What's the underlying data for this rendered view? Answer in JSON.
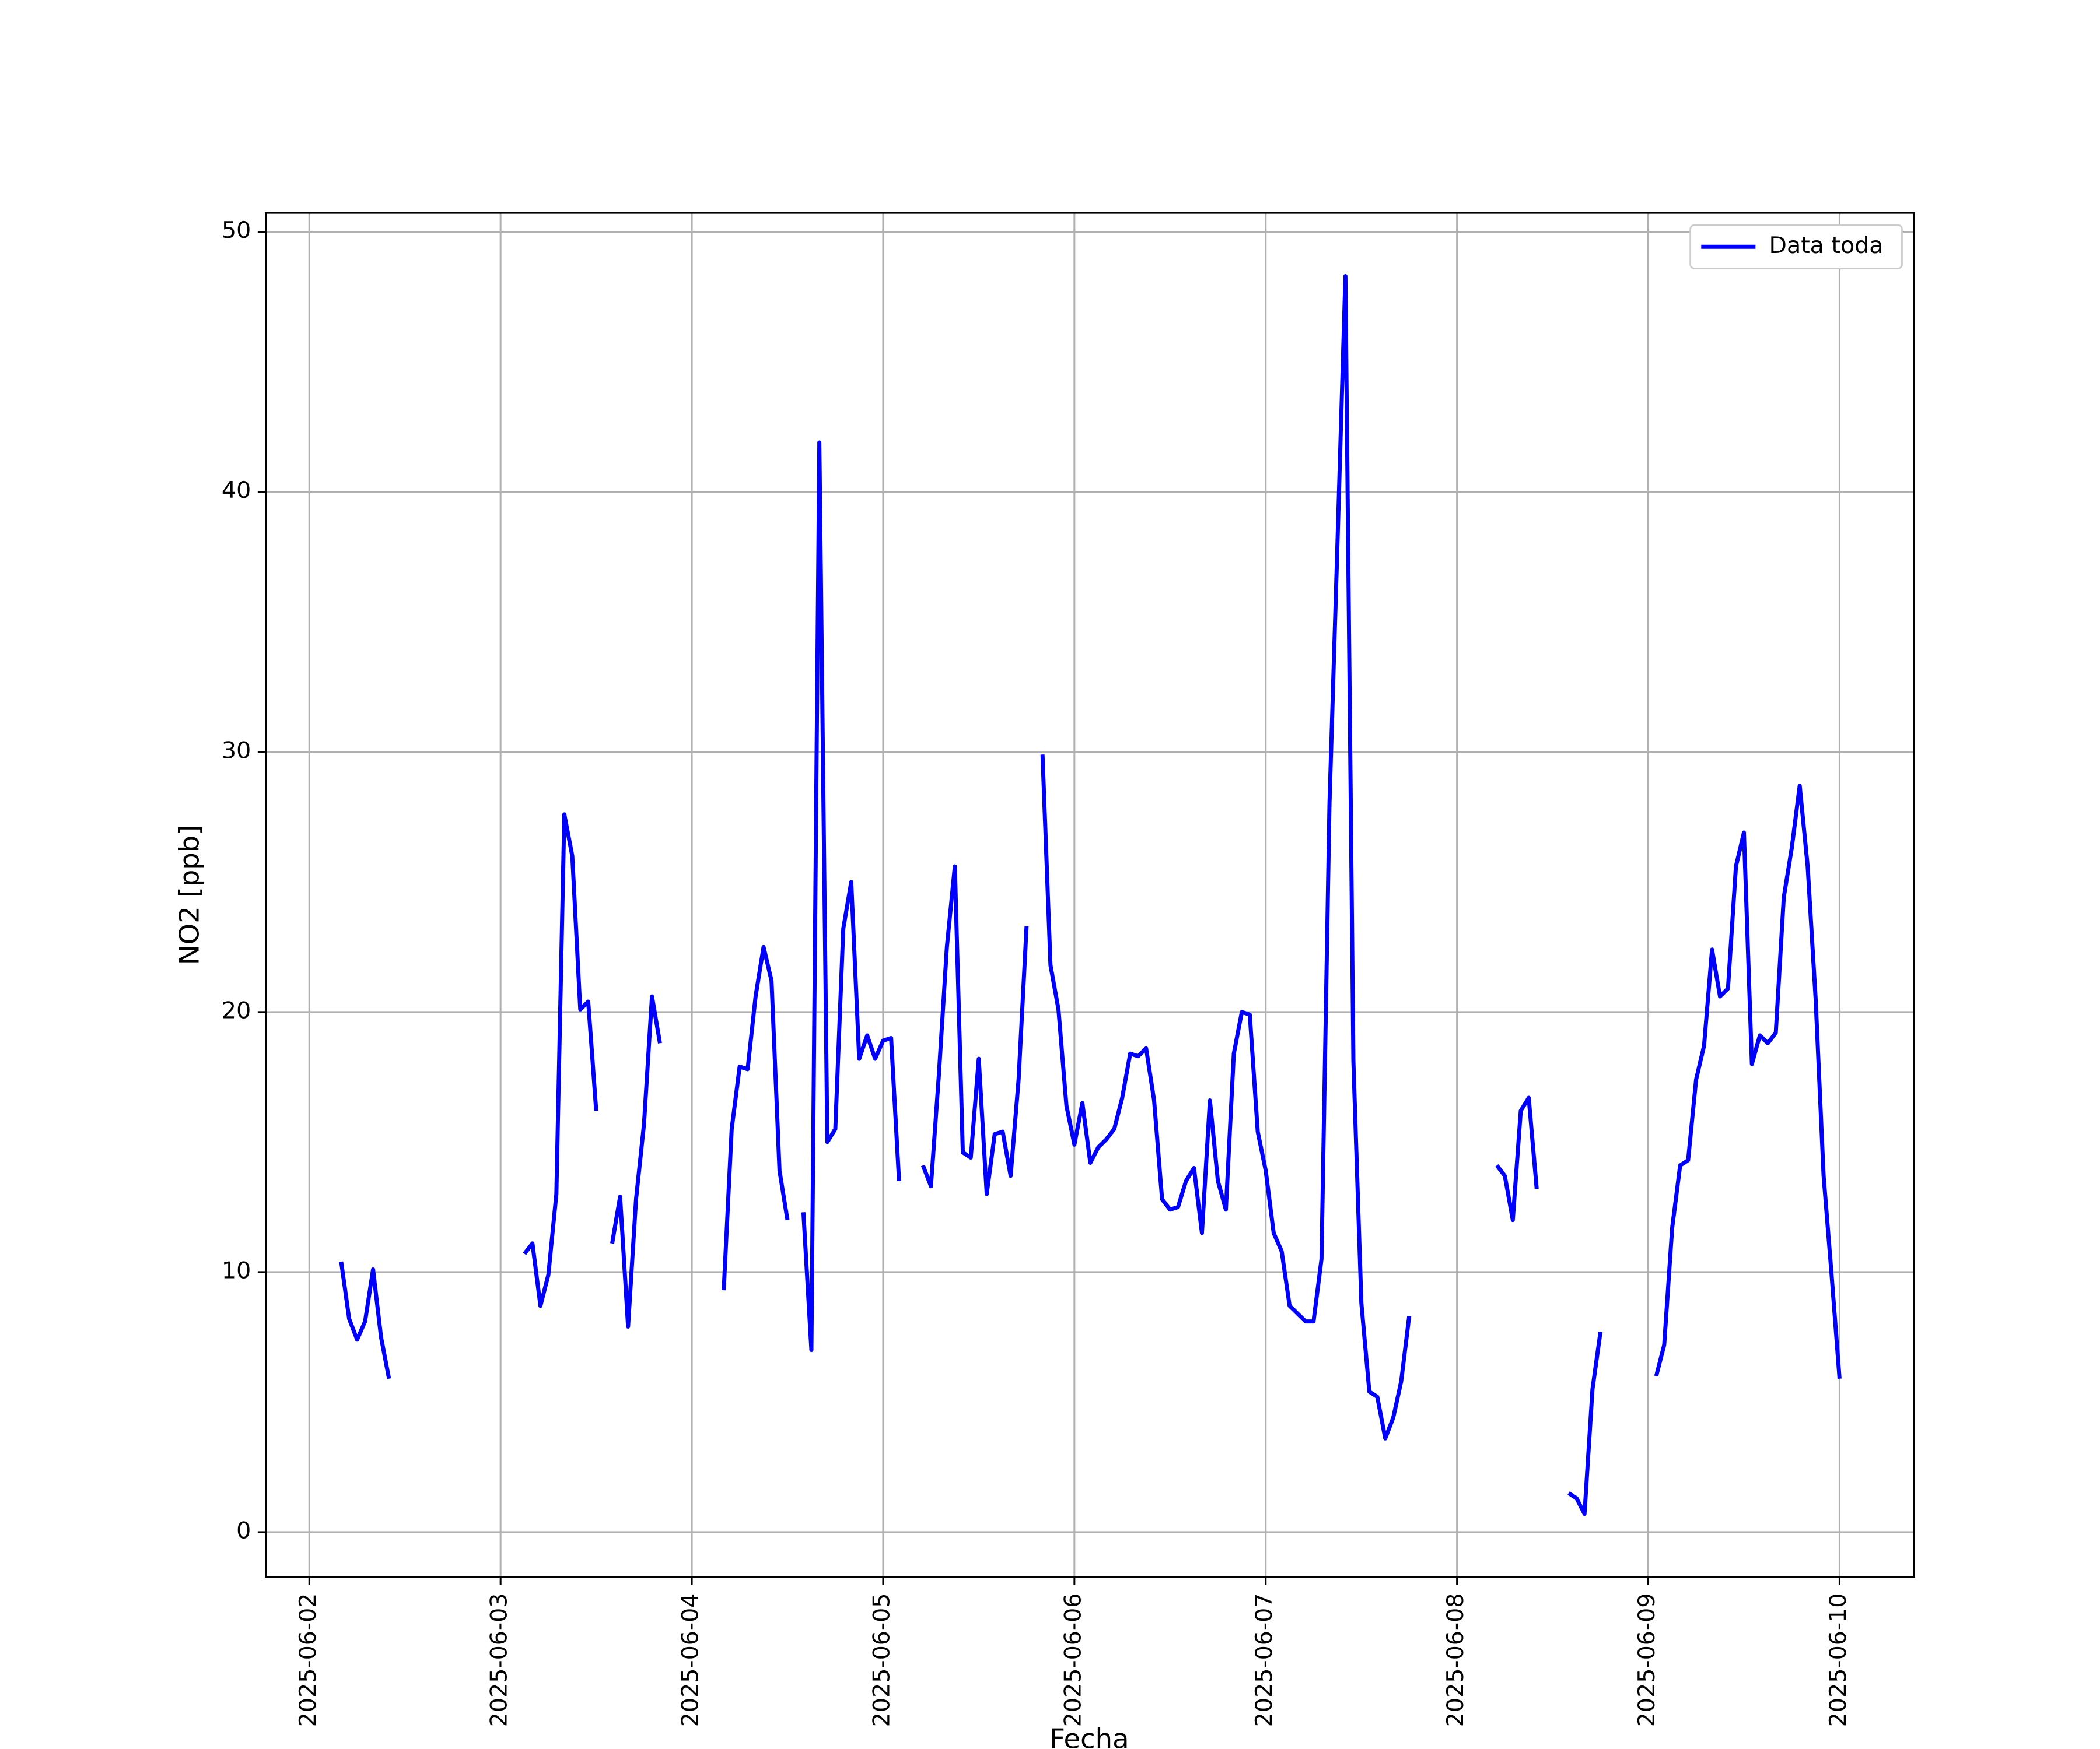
{
  "chart_data": {
    "type": "line",
    "xlabel": "Fecha",
    "ylabel": "NO2 [ppb]",
    "x": [
      "2025-06-02T04:00",
      "2025-06-02T05:00",
      "2025-06-02T06:00",
      "2025-06-02T07:00",
      "2025-06-02T08:00",
      "2025-06-02T09:00",
      "2025-06-02T10:00",
      "2025-06-02T11:00",
      "2025-06-03T03:00",
      "2025-06-03T04:00",
      "2025-06-03T05:00",
      "2025-06-03T06:00",
      "2025-06-03T07:00",
      "2025-06-03T08:00",
      "2025-06-03T09:00",
      "2025-06-03T10:00",
      "2025-06-03T11:00",
      "2025-06-03T12:00",
      "2025-06-03T13:00",
      "2025-06-03T14:00",
      "2025-06-03T15:00",
      "2025-06-03T16:00",
      "2025-06-03T17:00",
      "2025-06-03T18:00",
      "2025-06-03T19:00",
      "2025-06-03T20:00",
      "2025-06-03T21:00",
      "2025-06-04T04:00",
      "2025-06-04T05:00",
      "2025-06-04T06:00",
      "2025-06-04T07:00",
      "2025-06-04T08:00",
      "2025-06-04T09:00",
      "2025-06-04T10:00",
      "2025-06-04T11:00",
      "2025-06-04T12:00",
      "2025-06-04T13:00",
      "2025-06-04T14:00",
      "2025-06-04T15:00",
      "2025-06-04T16:00",
      "2025-06-04T17:00",
      "2025-06-04T18:00",
      "2025-06-04T19:00",
      "2025-06-04T20:00",
      "2025-06-04T21:00",
      "2025-06-04T22:00",
      "2025-06-04T23:00",
      "2025-06-05T00:00",
      "2025-06-05T01:00",
      "2025-06-05T02:00",
      "2025-06-05T03:00",
      "2025-06-05T05:00",
      "2025-06-05T06:00",
      "2025-06-05T07:00",
      "2025-06-05T08:00",
      "2025-06-05T09:00",
      "2025-06-05T10:00",
      "2025-06-05T11:00",
      "2025-06-05T12:00",
      "2025-06-05T13:00",
      "2025-06-05T14:00",
      "2025-06-05T15:00",
      "2025-06-05T16:00",
      "2025-06-05T17:00",
      "2025-06-05T18:00",
      "2025-06-05T19:00",
      "2025-06-05T20:00",
      "2025-06-05T21:00",
      "2025-06-05T22:00",
      "2025-06-05T23:00",
      "2025-06-06T00:00",
      "2025-06-06T01:00",
      "2025-06-06T02:00",
      "2025-06-06T03:00",
      "2025-06-06T04:00",
      "2025-06-06T05:00",
      "2025-06-06T06:00",
      "2025-06-06T07:00",
      "2025-06-06T08:00",
      "2025-06-06T09:00",
      "2025-06-06T10:00",
      "2025-06-06T11:00",
      "2025-06-06T12:00",
      "2025-06-06T13:00",
      "2025-06-06T14:00",
      "2025-06-06T15:00",
      "2025-06-06T16:00",
      "2025-06-06T17:00",
      "2025-06-06T18:00",
      "2025-06-06T19:00",
      "2025-06-06T20:00",
      "2025-06-06T21:00",
      "2025-06-06T22:00",
      "2025-06-06T23:00",
      "2025-06-07T00:00",
      "2025-06-07T01:00",
      "2025-06-07T02:00",
      "2025-06-07T03:00",
      "2025-06-07T04:00",
      "2025-06-07T05:00",
      "2025-06-07T06:00",
      "2025-06-07T07:00",
      "2025-06-07T08:00",
      "2025-06-07T09:00",
      "2025-06-07T10:00",
      "2025-06-07T11:00",
      "2025-06-07T12:00",
      "2025-06-07T13:00",
      "2025-06-07T14:00",
      "2025-06-07T15:00",
      "2025-06-07T16:00",
      "2025-06-07T17:00",
      "2025-06-07T18:00",
      "2025-06-07T19:00",
      "2025-06-08T05:00",
      "2025-06-08T06:00",
      "2025-06-08T07:00",
      "2025-06-08T08:00",
      "2025-06-08T09:00",
      "2025-06-08T10:00",
      "2025-06-08T11:00",
      "2025-06-08T14:00",
      "2025-06-08T15:00",
      "2025-06-08T16:00",
      "2025-06-08T17:00",
      "2025-06-08T18:00",
      "2025-06-08T19:00",
      "2025-06-09T01:00",
      "2025-06-09T02:00",
      "2025-06-09T03:00",
      "2025-06-09T04:00",
      "2025-06-09T05:00",
      "2025-06-09T06:00",
      "2025-06-09T07:00",
      "2025-06-09T08:00",
      "2025-06-09T09:00",
      "2025-06-09T10:00",
      "2025-06-09T11:00",
      "2025-06-09T12:00",
      "2025-06-09T13:00",
      "2025-06-09T14:00",
      "2025-06-09T15:00",
      "2025-06-09T16:00",
      "2025-06-09T17:00",
      "2025-06-09T18:00",
      "2025-06-09T19:00",
      "2025-06-09T20:00",
      "2025-06-09T21:00",
      "2025-06-09T22:00",
      "2025-06-09T23:00",
      "2025-06-10T00:00"
    ],
    "series": [
      {
        "name": "Data toda",
        "color": "#0000ff",
        "values": [
          10.4,
          8.2,
          7.4,
          8.1,
          10.1,
          7.5,
          5.9,
          null,
          10.7,
          11.1,
          8.7,
          9.9,
          13,
          27.6,
          26,
          20.1,
          20.4,
          16.2,
          null,
          11.1,
          12.9,
          7.9,
          12.8,
          15.7,
          20.6,
          18.8,
          null,
          9.3,
          15.5,
          17.9,
          17.8,
          20.6,
          22.5,
          21.2,
          13.9,
          12,
          null,
          12.3,
          7,
          41.9,
          15,
          15.5,
          23.2,
          25,
          18.2,
          19.1,
          18.2,
          18.9,
          19,
          13.5,
          null,
          14.1,
          13.3,
          17.6,
          22.5,
          25.6,
          14.6,
          14.4,
          18.2,
          13,
          15.3,
          15.4,
          13.7,
          17.4,
          23.3,
          null,
          29.9,
          21.8,
          20.1,
          16.4,
          14.9,
          16.5,
          14.2,
          14.8,
          15.1,
          15.5,
          16.7,
          18.4,
          18.3,
          18.6,
          16.6,
          12.8,
          12.4,
          12.5,
          13.5,
          14,
          11.5,
          16.6,
          13.5,
          12.4,
          18.4,
          20,
          19.9,
          15.4,
          13.9,
          11.5,
          10.8,
          8.7,
          8.4,
          8.1,
          8.1,
          10.5,
          28,
          38,
          48.3,
          18.1,
          8.8,
          5.4,
          5.2,
          3.6,
          4.4,
          5.8,
          8.3,
          null,
          14.1,
          13.7,
          12,
          16.2,
          16.7,
          13.2,
          null,
          1.5,
          1.3,
          0.7,
          5.5,
          7.7,
          null,
          6,
          7.2,
          11.7,
          14.1,
          14.3,
          17.4,
          18.7,
          22.4,
          20.6,
          20.9,
          25.6,
          26.9,
          18,
          19.1,
          18.8,
          19.2,
          24.4,
          26.3,
          28.7,
          25.6,
          20.5,
          13.7,
          9.9,
          5.9
        ]
      }
    ],
    "xlim": [
      "2025-06-01T18:33",
      "2025-06-10T09:22"
    ],
    "xticks": [
      {
        "value": "2025-06-02T00:00",
        "label": "2025-06-02"
      },
      {
        "value": "2025-06-03T00:00",
        "label": "2025-06-03"
      },
      {
        "value": "2025-06-04T00:00",
        "label": "2025-06-04"
      },
      {
        "value": "2025-06-05T00:00",
        "label": "2025-06-05"
      },
      {
        "value": "2025-06-06T00:00",
        "label": "2025-06-06"
      },
      {
        "value": "2025-06-07T00:00",
        "label": "2025-06-07"
      },
      {
        "value": "2025-06-08T00:00",
        "label": "2025-06-08"
      },
      {
        "value": "2025-06-09T00:00",
        "label": "2025-06-09"
      },
      {
        "value": "2025-06-10T00:00",
        "label": "2025-06-10"
      }
    ],
    "ylim": [
      -1.72,
      50.73
    ],
    "yticks": [
      0,
      10,
      20,
      30,
      40,
      50
    ],
    "grid": true,
    "legend": "upper right"
  }
}
